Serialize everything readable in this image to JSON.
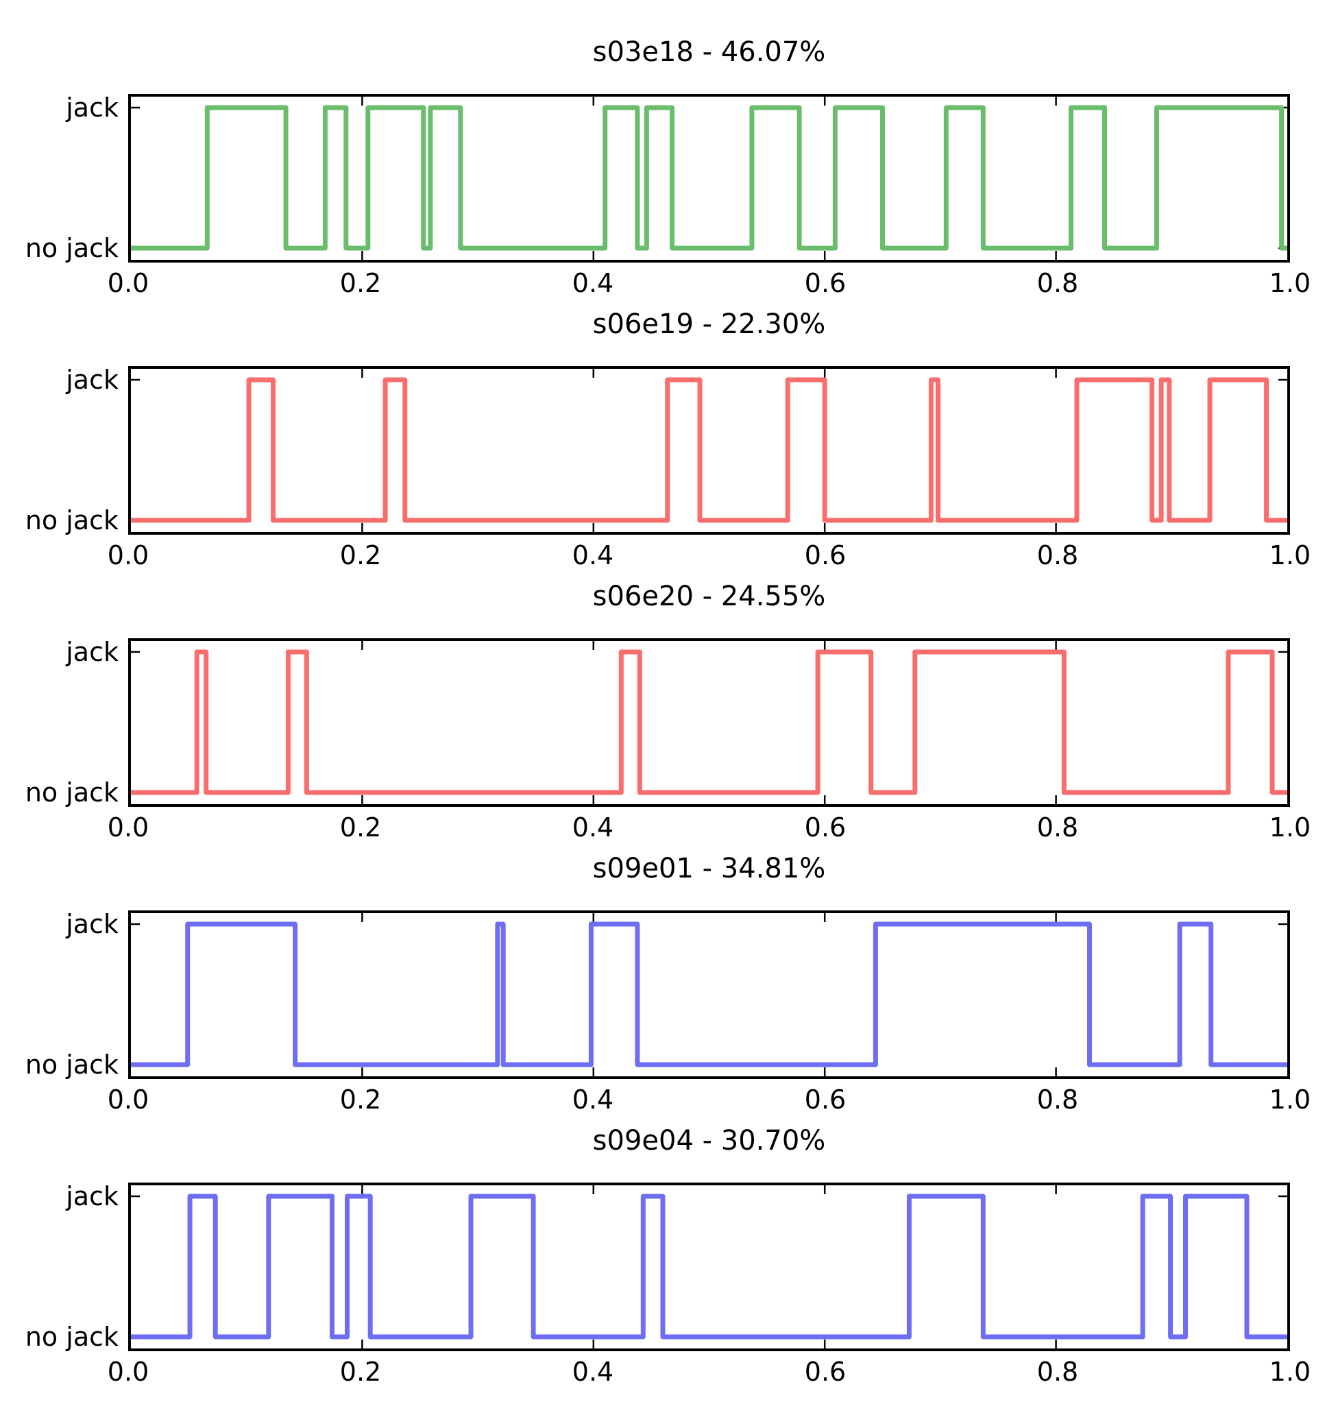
{
  "figure": {
    "background": "#ffffff",
    "spine_color": "#000000",
    "tick_color": "#000000",
    "n_subplots": 5
  },
  "x_axis": {
    "range": [
      0.0,
      1.0
    ],
    "tick_positions": [
      0.0,
      0.2,
      0.4,
      0.6,
      0.8,
      1.0
    ],
    "tick_labels": [
      "0.0",
      "0.2",
      "0.4",
      "0.6",
      "0.8",
      "1.0"
    ],
    "grid": false
  },
  "y_axis": {
    "tick_labels": [
      "jack",
      "no jack"
    ],
    "jack_value": 1,
    "no_jack_value": 0
  },
  "chart_data": [
    {
      "type": "line",
      "subtype": "square-wave",
      "title": "s03e18 - 46.07%",
      "episode": "s03e18",
      "percent_jack": 46.07,
      "color": "#6abd6b",
      "x_range": [
        0,
        1
      ],
      "y_categories": [
        "no jack",
        "jack"
      ],
      "legend": "none",
      "jack_intervals": [
        [
          0.066,
          0.134
        ],
        [
          0.168,
          0.186
        ],
        [
          0.205,
          0.253
        ],
        [
          0.259,
          0.285
        ],
        [
          0.41,
          0.438
        ],
        [
          0.446,
          0.468
        ],
        [
          0.537,
          0.578
        ],
        [
          0.609,
          0.65
        ],
        [
          0.705,
          0.737
        ],
        [
          0.813,
          0.842
        ],
        [
          0.887,
          0.995
        ]
      ]
    },
    {
      "type": "line",
      "subtype": "square-wave",
      "title": "s06e19 - 22.30%",
      "episode": "s06e19",
      "percent_jack": 22.3,
      "color": "#fa6d6d",
      "x_range": [
        0,
        1
      ],
      "y_categories": [
        "no jack",
        "jack"
      ],
      "legend": "none",
      "jack_intervals": [
        [
          0.102,
          0.123
        ],
        [
          0.22,
          0.237
        ],
        [
          0.464,
          0.492
        ],
        [
          0.568,
          0.6
        ],
        [
          0.692,
          0.698
        ],
        [
          0.818,
          0.883
        ],
        [
          0.891,
          0.898
        ],
        [
          0.933,
          0.982
        ]
      ]
    },
    {
      "type": "line",
      "subtype": "square-wave",
      "title": "s06e20 - 24.55%",
      "episode": "s06e20",
      "percent_jack": 24.55,
      "color": "#fa6d6d",
      "x_range": [
        0,
        1
      ],
      "y_categories": [
        "no jack",
        "jack"
      ],
      "legend": "none",
      "jack_intervals": [
        [
          0.057,
          0.065
        ],
        [
          0.136,
          0.152
        ],
        [
          0.424,
          0.44
        ],
        [
          0.594,
          0.64
        ],
        [
          0.678,
          0.807
        ],
        [
          0.949,
          0.987
        ]
      ]
    },
    {
      "type": "line",
      "subtype": "square-wave",
      "title": "s09e01 - 34.81%",
      "episode": "s09e01",
      "percent_jack": 34.81,
      "color": "#6e6ef5",
      "x_range": [
        0,
        1
      ],
      "y_categories": [
        "no jack",
        "jack"
      ],
      "legend": "none",
      "jack_intervals": [
        [
          0.049,
          0.142
        ],
        [
          0.317,
          0.322
        ],
        [
          0.398,
          0.438
        ],
        [
          0.644,
          0.829
        ],
        [
          0.907,
          0.934
        ]
      ]
    },
    {
      "type": "line",
      "subtype": "square-wave",
      "title": "s09e04 - 30.70%",
      "episode": "s09e04",
      "percent_jack": 30.7,
      "color": "#6e6ef5",
      "x_range": [
        0,
        1
      ],
      "y_categories": [
        "no jack",
        "jack"
      ],
      "legend": "none",
      "jack_intervals": [
        [
          0.051,
          0.073
        ],
        [
          0.119,
          0.174
        ],
        [
          0.187,
          0.207
        ],
        [
          0.294,
          0.348
        ],
        [
          0.443,
          0.46
        ],
        [
          0.673,
          0.737
        ],
        [
          0.875,
          0.899
        ],
        [
          0.912,
          0.965
        ]
      ]
    }
  ]
}
